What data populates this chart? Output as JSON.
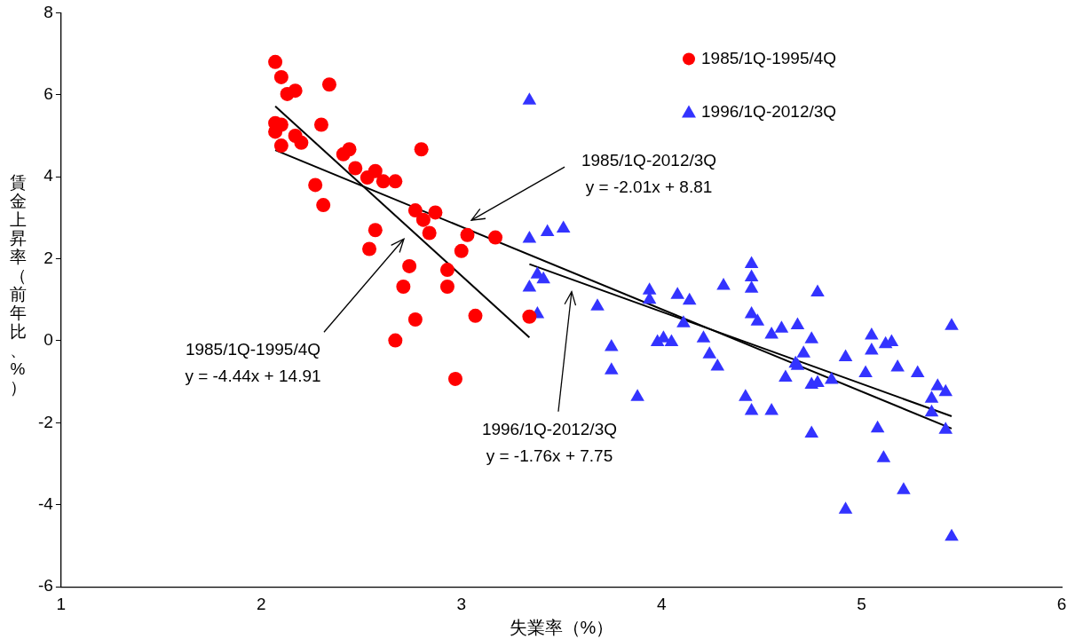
{
  "chart_data": {
    "type": "scatter",
    "xlabel": "失業率（%）",
    "ylabel": "賃金上昇率（前年比、%）",
    "xlim": [
      1,
      6
    ],
    "xticks": [
      1,
      2,
      3,
      4,
      5,
      6
    ],
    "ylim": [
      -6,
      8
    ],
    "yticks": [
      -6,
      -4,
      -2,
      0,
      2,
      4,
      6,
      8
    ],
    "grid": false,
    "legend": "top right",
    "series": [
      {
        "name": "1985/1Q-1995/4Q",
        "color": "#ff0000",
        "marker": "circle",
        "x": [
          2.07,
          2.1,
          2.13,
          2.17,
          2.34,
          2.07,
          2.1,
          2.07,
          2.17,
          2.2,
          2.1,
          2.3,
          2.41,
          2.44,
          2.8,
          2.47,
          2.27,
          2.31,
          2.53,
          2.57,
          2.61,
          2.67,
          2.77,
          2.87,
          2.81,
          2.84,
          3.03,
          3.17,
          2.57,
          2.54,
          2.74,
          2.93,
          3.0,
          2.71,
          2.93,
          2.77,
          3.07,
          3.34,
          2.67,
          2.97
        ],
        "values": [
          6.8,
          6.43,
          6.02,
          6.1,
          6.25,
          5.31,
          5.27,
          5.1,
          5.0,
          4.83,
          4.76,
          5.27,
          4.55,
          4.67,
          4.67,
          4.21,
          3.8,
          3.31,
          3.98,
          4.14,
          3.89,
          3.89,
          3.18,
          3.13,
          2.95,
          2.63,
          2.58,
          2.52,
          2.7,
          2.24,
          1.82,
          1.73,
          2.19,
          1.32,
          1.32,
          0.52,
          0.61,
          0.59,
          0.01,
          -0.93
        ]
      },
      {
        "name": "1996/1Q-2012/3Q",
        "color": "#3333ff",
        "marker": "triangle",
        "x": [
          3.34,
          3.34,
          3.43,
          3.51,
          3.38,
          3.41,
          3.34,
          3.38,
          3.68,
          3.75,
          3.75,
          3.88,
          3.94,
          3.94,
          4.08,
          4.14,
          3.98,
          4.01,
          4.05,
          4.11,
          4.21,
          4.24,
          4.28,
          4.31,
          4.45,
          4.45,
          4.45,
          4.45,
          4.48,
          4.55,
          4.42,
          4.45,
          4.55,
          4.6,
          4.68,
          4.62,
          4.67,
          4.78,
          4.75,
          4.71,
          4.68,
          4.75,
          4.78,
          4.85,
          4.92,
          5.05,
          5.05,
          5.12,
          5.15,
          5.02,
          5.18,
          5.28,
          5.38,
          5.42,
          5.35,
          5.35,
          5.42,
          5.45,
          4.75,
          5.08,
          5.11,
          5.21,
          4.92,
          5.45
        ],
        "values": [
          5.86,
          2.49,
          2.65,
          2.74,
          1.62,
          1.5,
          1.3,
          0.65,
          0.84,
          -0.15,
          -0.72,
          -1.37,
          1.23,
          1.0,
          1.12,
          0.98,
          -0.03,
          0.06,
          -0.03,
          0.43,
          0.06,
          -0.33,
          -0.63,
          1.34,
          1.87,
          1.55,
          1.27,
          0.65,
          0.47,
          0.15,
          -1.37,
          -1.71,
          -1.71,
          0.3,
          0.38,
          -0.9,
          -0.56,
          1.18,
          0.04,
          -0.31,
          -0.61,
          -1.07,
          -1.03,
          -0.95,
          -0.4,
          0.13,
          -0.24,
          -0.08,
          -0.03,
          -0.79,
          -0.65,
          -0.79,
          -1.11,
          -1.25,
          -1.41,
          -1.75,
          -2.17,
          0.36,
          -2.26,
          -2.14,
          -2.86,
          -3.64,
          -4.12,
          -4.78
        ]
      },
      {
        "type": "line",
        "color": "#000000",
        "marker": "none",
        "x": [
          2.07,
          3.34
        ],
        "values": [
          5.72,
          0.08
        ]
      },
      {
        "type": "line",
        "color": "#000000",
        "marker": "none",
        "x": [
          2.07,
          5.45
        ],
        "values": [
          4.65,
          -2.14
        ]
      },
      {
        "type": "line",
        "color": "#000000",
        "marker": "none",
        "x": [
          3.34,
          5.45
        ],
        "values": [
          1.87,
          -1.84
        ]
      }
    ],
    "annotations": [
      "1985/1Q-2012/3Q\ny = -2.01x + 8.81",
      "1985/1Q-1995/4Q\ny = -4.44x + 14.91",
      "1996/1Q-2012/3Q\ny = -1.76x + 7.75"
    ]
  }
}
